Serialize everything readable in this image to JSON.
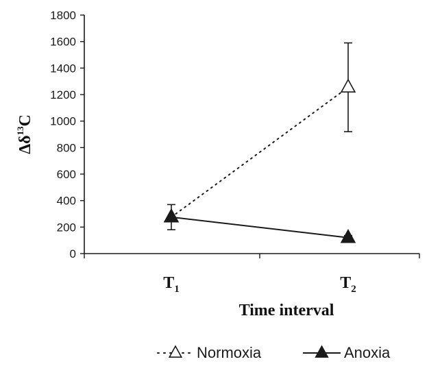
{
  "chart_data": {
    "type": "line",
    "title": "",
    "xlabel": "Time interval",
    "ylabel": {
      "prefix": "Δδ",
      "sup": "13",
      "suffix": "C"
    },
    "categories": [
      {
        "main": "T",
        "sub": "1"
      },
      {
        "main": "T",
        "sub": "2"
      }
    ],
    "ylim": [
      0,
      1800
    ],
    "yticks": [
      0,
      200,
      400,
      600,
      800,
      1000,
      1200,
      1400,
      1600,
      1800
    ],
    "grid": false,
    "legend_position": "bottom",
    "series": [
      {
        "name": "Normoxia",
        "values": [
          275,
          1255
        ],
        "errors": [
          95,
          335
        ],
        "marker": "open-triangle",
        "line_style": "dotted",
        "color": "#1a1a1a"
      },
      {
        "name": "Anoxia",
        "values": [
          275,
          120
        ],
        "errors": [
          0,
          15
        ],
        "marker": "filled-triangle",
        "line_style": "solid",
        "color": "#1a1a1a"
      }
    ]
  }
}
